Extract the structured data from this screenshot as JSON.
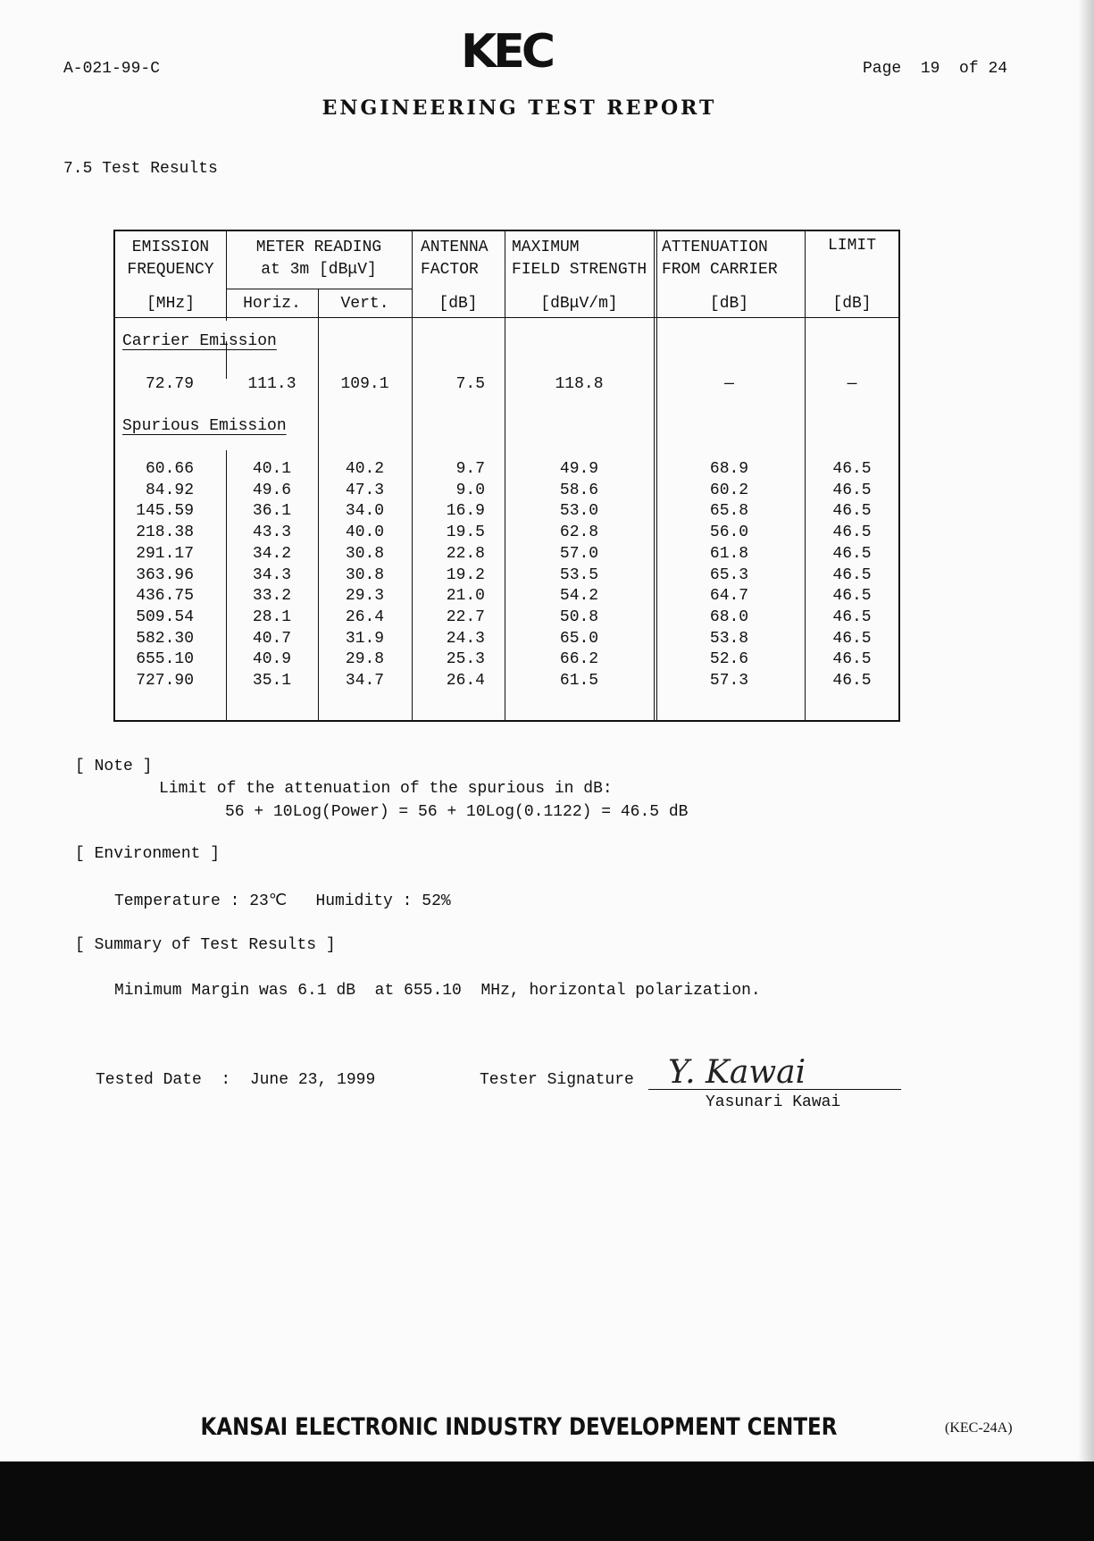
{
  "header": {
    "doc_id": "A-021-99-C",
    "logo": "KEC",
    "page_label": "Page",
    "page": "19",
    "of_label": "of",
    "total_pages": "24",
    "title": "ENGINEERING TEST REPORT"
  },
  "section": "7.5 Test Results",
  "table": {
    "headers": {
      "freq": [
        "EMISSION",
        "FREQUENCY",
        "[MHz]"
      ],
      "meter": [
        "METER READING",
        "at 3m [dBμV]"
      ],
      "horiz": "Horiz.",
      "vert": "Vert.",
      "antenna": [
        "ANTENNA",
        "FACTOR",
        "[dB]"
      ],
      "field": [
        "MAXIMUM",
        "FIELD STRENGTH",
        "[dBμV/m]"
      ],
      "atten": [
        "ATTENUATION",
        "FROM CARRIER",
        "[dB]"
      ],
      "limit": [
        "LIMIT",
        "[dB]"
      ]
    },
    "carrier_label": "Carrier Emission",
    "carrier": [
      "72.79",
      "111.3",
      "109.1",
      "7.5",
      "118.8",
      "—",
      "—"
    ],
    "spurious_label": "Spurious Emission",
    "spurious": [
      [
        "60.66",
        "40.1",
        "40.2",
        "9.7",
        "49.9",
        "68.9",
        "46.5"
      ],
      [
        "84.92",
        "49.6",
        "47.3",
        "9.0",
        "58.6",
        "60.2",
        "46.5"
      ],
      [
        "145.59",
        "36.1",
        "34.0",
        "16.9",
        "53.0",
        "65.8",
        "46.5"
      ],
      [
        "218.38",
        "43.3",
        "40.0",
        "19.5",
        "62.8",
        "56.0",
        "46.5"
      ],
      [
        "291.17",
        "34.2",
        "30.8",
        "22.8",
        "57.0",
        "61.8",
        "46.5"
      ],
      [
        "363.96",
        "34.3",
        "30.8",
        "19.2",
        "53.5",
        "65.3",
        "46.5"
      ],
      [
        "436.75",
        "33.2",
        "29.3",
        "21.0",
        "54.2",
        "64.7",
        "46.5"
      ],
      [
        "509.54",
        "28.1",
        "26.4",
        "22.7",
        "50.8",
        "68.0",
        "46.5"
      ],
      [
        "582.30",
        "40.7",
        "31.9",
        "24.3",
        "65.0",
        "53.8",
        "46.5"
      ],
      [
        "655.10",
        "40.9",
        "29.8",
        "25.3",
        "66.2",
        "52.6",
        "46.5"
      ],
      [
        "727.90",
        "35.1",
        "34.7",
        "26.4",
        "61.5",
        "57.3",
        "46.5"
      ]
    ]
  },
  "note": {
    "heading": "[ Note ]",
    "line1": "Limit of the attenuation of the spurious in dB:",
    "line2": "56 + 10Log(Power) = 56 + 10Log(0.1122) = 46.5 dB"
  },
  "environment": {
    "heading": "[ Environment ]",
    "text": "Temperature : 23℃   Humidity : 52%"
  },
  "summary": {
    "heading": "[ Summary of Test Results ]",
    "text": "Minimum Margin was 6.1 dB  at 655.10  MHz, horizontal polarization."
  },
  "signoff": {
    "date_label": "Tested Date  :  June 23, 1999",
    "sig_label": "Tester Signature",
    "signature": "Y. Kawai",
    "name": "Yasunari Kawai"
  },
  "footer": {
    "org": "KANSAI ELECTRONIC INDUSTRY DEVELOPMENT CENTER",
    "form": "(KEC-24A)"
  }
}
